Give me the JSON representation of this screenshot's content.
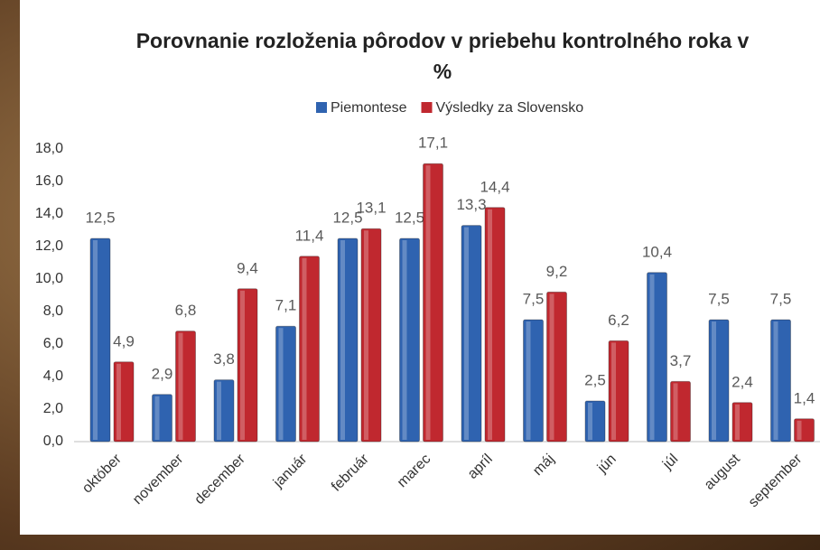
{
  "chart_data": {
    "type": "bar",
    "title": "Porovnanie rozloženia pôrodov v priebehu kontrolného roka v %",
    "categories": [
      "október",
      "november",
      "december",
      "január",
      "február",
      "marec",
      "apríl",
      "máj",
      "jún",
      "júl",
      "august",
      "september"
    ],
    "series": [
      {
        "name": "Piemontese",
        "color": "#2f63b0",
        "values": [
          12.5,
          2.9,
          3.8,
          7.1,
          12.5,
          12.5,
          13.3,
          7.5,
          2.5,
          10.4,
          7.5,
          7.5
        ],
        "value_labels": [
          "12,5",
          "2,9",
          "3,8",
          "7,1",
          "12,5",
          "12,5",
          "13,3",
          "7,5",
          "2,5",
          "10,4",
          "7,5",
          "7,5"
        ]
      },
      {
        "name": "Výsledky za Slovensko",
        "color": "#c0282f",
        "values": [
          4.9,
          6.8,
          9.4,
          11.4,
          13.1,
          17.1,
          14.4,
          9.2,
          6.2,
          3.7,
          2.4,
          1.4
        ],
        "value_labels": [
          "4,9",
          "6,8",
          "9,4",
          "11,4",
          "13,1",
          "17,1",
          "14,4",
          "9,2",
          "6,2",
          "3,7",
          "2,4",
          "1,4"
        ]
      }
    ],
    "ylim": [
      0,
      18
    ],
    "yticks": [
      {
        "value": 0,
        "label": "0,0"
      },
      {
        "value": 2,
        "label": "2,0"
      },
      {
        "value": 4,
        "label": "4,0"
      },
      {
        "value": 6,
        "label": "6,0"
      },
      {
        "value": 8,
        "label": "8,0"
      },
      {
        "value": 10,
        "label": "10,0"
      },
      {
        "value": 12,
        "label": "12,0"
      },
      {
        "value": 14,
        "label": "14,0"
      },
      {
        "value": 16,
        "label": "16,0"
      },
      {
        "value": 18,
        "label": "18,0"
      }
    ],
    "legend": "top"
  }
}
